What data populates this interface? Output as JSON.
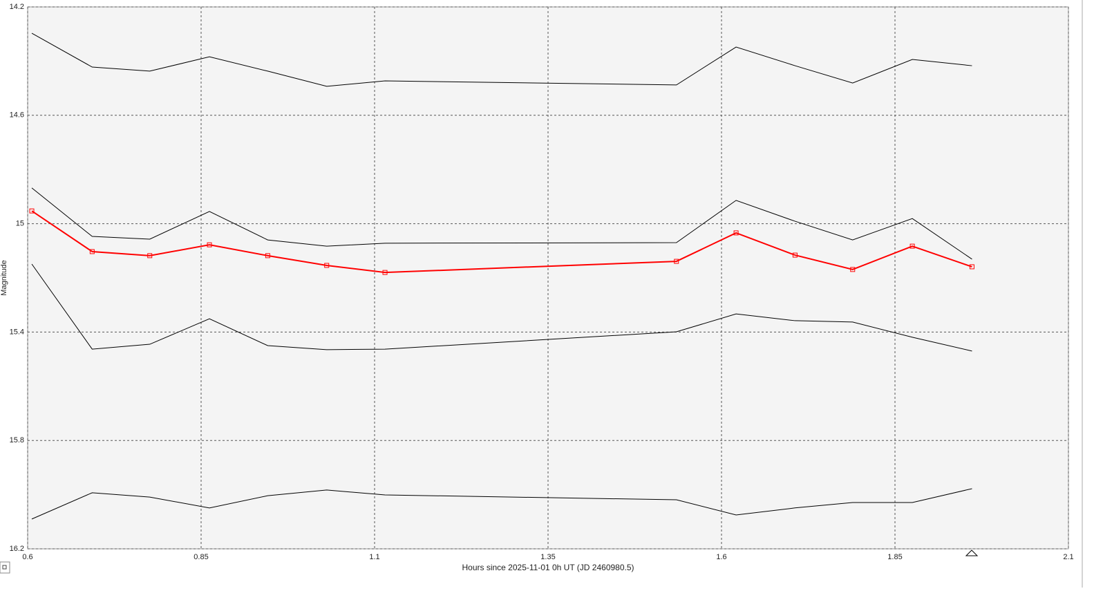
{
  "chart_data": {
    "type": "line",
    "y_label": "Magnitude",
    "x_label": "Hours since 2025-11-01 0h UT (JD 2460980.5)",
    "x": [
      0.606,
      0.693,
      0.776,
      0.862,
      0.946,
      1.031,
      1.115,
      1.535,
      1.621,
      1.706,
      1.789,
      1.875,
      1.961
    ],
    "series": [
      {
        "color": "#000000",
        "markers": false,
        "values": [
          14.297,
          14.422,
          14.437,
          14.384,
          14.437,
          14.493,
          14.473,
          14.488,
          14.348,
          14.417,
          14.481,
          14.394,
          14.417
        ]
      },
      {
        "color": "#000000",
        "markers": false,
        "values": [
          14.868,
          15.047,
          15.057,
          14.955,
          15.06,
          15.083,
          15.072,
          15.07,
          14.914,
          14.991,
          15.06,
          14.981,
          15.131
        ]
      },
      {
        "color": "#ff0000",
        "markers": true,
        "values": [
          14.953,
          15.103,
          15.118,
          15.078,
          15.118,
          15.154,
          15.18,
          15.139,
          15.034,
          15.116,
          15.169,
          15.083,
          15.159
        ]
      },
      {
        "color": "#000000",
        "markers": false,
        "values": [
          15.149,
          15.463,
          15.445,
          15.351,
          15.45,
          15.465,
          15.463,
          15.399,
          15.333,
          15.358,
          15.363,
          15.419,
          15.47
        ]
      },
      {
        "color": "#000000",
        "markers": false,
        "values": [
          16.09,
          15.993,
          16.009,
          16.049,
          16.004,
          15.983,
          16.001,
          16.019,
          16.075,
          16.049,
          16.029,
          16.029,
          15.978
        ]
      }
    ],
    "xlim": [
      0.6,
      2.1
    ],
    "xticks": [
      0.6,
      0.85,
      1.1,
      1.35,
      1.6,
      1.85,
      2.1
    ],
    "ylim": [
      14.2,
      16.2
    ],
    "yticks": [
      14.2,
      14.6,
      15,
      15.4,
      15.8,
      16.2
    ],
    "y_inverted": true,
    "grid": true
  }
}
